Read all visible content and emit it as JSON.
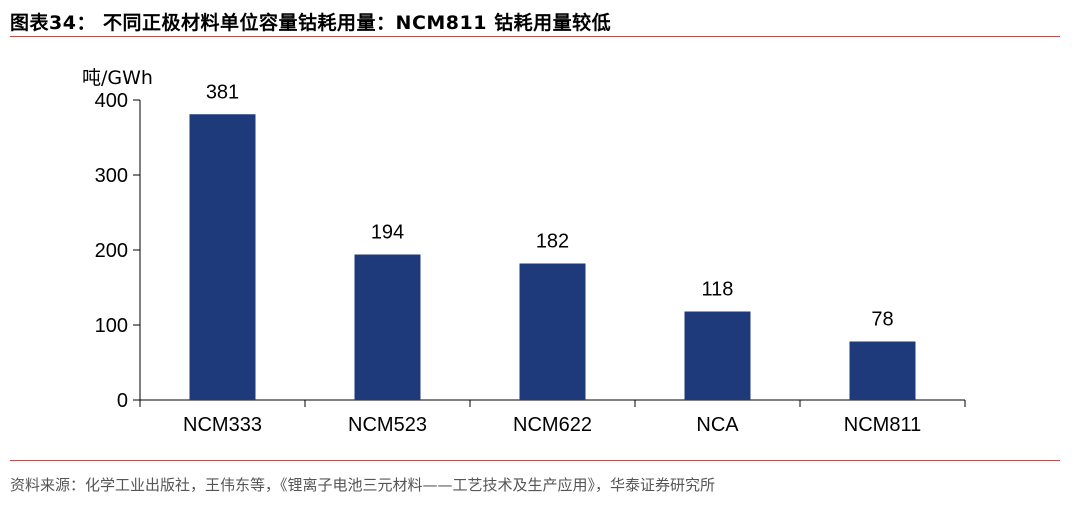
{
  "header": {
    "title": "图表34： 不同正极材料单位容量钴耗用量：NCM811 钴耗用量较低"
  },
  "footer": {
    "source": "资料来源：化学工业出版社，王伟东等，《锂离子电池三元材料——工艺技术及生产应用》，华泰证券研究所"
  },
  "colors": {
    "bar": "#1f3a7a",
    "rule": "#c0504d"
  },
  "chart_data": {
    "type": "bar",
    "categories": [
      "NCM333",
      "NCM523",
      "NCM622",
      "NCA",
      "NCM811"
    ],
    "values": [
      381,
      194,
      182,
      118,
      78
    ],
    "value_labels": [
      "381",
      "194",
      "182",
      "118",
      "78"
    ],
    "title": "",
    "xlabel": "",
    "ylabel": "吨/GWh",
    "ylim": [
      0,
      400
    ],
    "yticks": [
      0,
      100,
      200,
      300,
      400
    ],
    "ytick_labels": [
      "0",
      "100",
      "200",
      "300",
      "400"
    ],
    "grid": false,
    "legend": "none"
  }
}
